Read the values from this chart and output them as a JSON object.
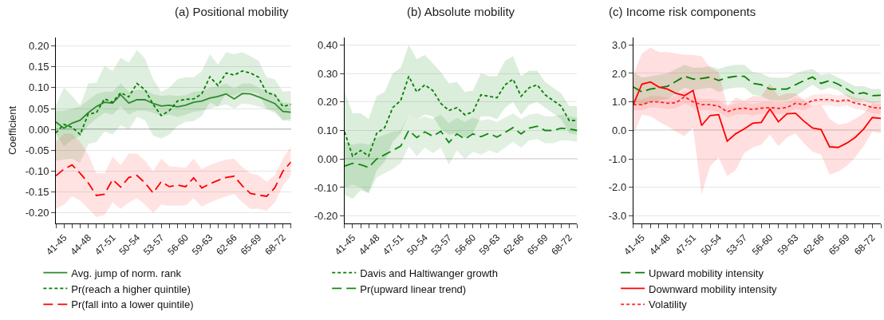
{
  "chart_data": [
    {
      "type": "line",
      "title": "(a) Positional mobility",
      "ylabel": "Coefficient",
      "categories": [
        null,
        "41-45",
        null,
        null,
        "44-48",
        null,
        null,
        "47-51",
        null,
        null,
        "50-54",
        null,
        null,
        "53-57",
        null,
        null,
        "56-60",
        null,
        null,
        "59-63",
        null,
        null,
        "62-66",
        null,
        null,
        "65-69",
        null,
        null,
        "68-72",
        null
      ],
      "ylim": [
        -0.225,
        0.22
      ],
      "yticks": [
        {
          "value": -0.2,
          "label": "-0.20"
        },
        {
          "value": -0.15,
          "label": "-0.15"
        },
        {
          "value": -0.1,
          "label": "-0.10"
        },
        {
          "value": -0.05,
          "label": "-0.05"
        },
        {
          "value": 0,
          "label": "0.00"
        },
        {
          "value": 0.05,
          "label": "0.05"
        },
        {
          "value": 0.1,
          "label": "0.10"
        },
        {
          "value": 0.15,
          "label": "0.15"
        },
        {
          "value": 0.2,
          "label": "0.20"
        }
      ],
      "grid": "y",
      "legend": "bottom",
      "marker": "none",
      "ref_lines": [
        {
          "axis": "y",
          "value": 0,
          "color": "#808080"
        }
      ],
      "series": [
        {
          "name": "Avg. jump of norm. rank",
          "color": "#2e8b2e",
          "line_style": "solid",
          "values": [
            0.018,
            0.003,
            0.015,
            0.022,
            0.04,
            0.055,
            0.065,
            0.063,
            0.083,
            0.063,
            0.071,
            0.071,
            0.062,
            0.056,
            0.058,
            0.054,
            0.058,
            0.065,
            0.068,
            0.075,
            0.079,
            0.085,
            0.073,
            0.086,
            0.085,
            0.078,
            0.07,
            0.062,
            0.043,
            0.041
          ],
          "upper": [
            0.045,
            0.045,
            0.05,
            0.055,
            0.07,
            0.085,
            0.09,
            0.09,
            0.11,
            0.09,
            0.095,
            0.095,
            0.085,
            0.08,
            0.082,
            0.08,
            0.082,
            0.09,
            0.092,
            0.1,
            0.103,
            0.11,
            0.098,
            0.11,
            0.11,
            0.1,
            0.092,
            0.085,
            0.065,
            0.063
          ],
          "lower": [
            -0.01,
            -0.04,
            -0.025,
            -0.015,
            0.01,
            0.025,
            0.04,
            0.035,
            0.055,
            0.035,
            0.045,
            0.045,
            0.04,
            0.032,
            0.035,
            0.03,
            0.035,
            0.042,
            0.045,
            0.05,
            0.055,
            0.06,
            0.05,
            0.062,
            0.06,
            0.055,
            0.048,
            0.04,
            0.022,
            0.02
          ]
        },
        {
          "name": "Pr(reach a higher quintile)",
          "color": "#008000",
          "line_style": "dotted",
          "values": [
            -0.008,
            0.012,
            0.005,
            -0.012,
            0.037,
            0.04,
            0.073,
            0.065,
            0.088,
            0.078,
            0.11,
            0.095,
            0.06,
            0.033,
            0.045,
            0.068,
            0.072,
            0.073,
            0.085,
            0.126,
            0.105,
            0.135,
            0.13,
            0.14,
            0.135,
            0.125,
            0.088,
            0.083,
            0.055,
            0.06
          ],
          "upper": [
            0.058,
            0.1,
            0.08,
            0.057,
            0.11,
            0.112,
            0.152,
            0.14,
            0.172,
            0.16,
            0.19,
            0.17,
            0.12,
            0.09,
            0.1,
            0.12,
            0.125,
            0.125,
            0.14,
            0.18,
            0.155,
            0.185,
            0.18,
            0.185,
            0.175,
            0.165,
            0.125,
            0.12,
            0.09,
            0.092
          ],
          "lower": [
            -0.075,
            -0.072,
            -0.07,
            -0.08,
            -0.035,
            -0.03,
            -0.005,
            -0.012,
            0.01,
            0.0,
            0.03,
            0.022,
            -0.015,
            -0.022,
            -0.012,
            0.008,
            0.018,
            0.02,
            0.032,
            0.065,
            0.055,
            0.085,
            0.08,
            0.09,
            0.09,
            0.085,
            0.05,
            0.045,
            0.022,
            0.025
          ]
        },
        {
          "name": "Pr(fall into a lower quintile)",
          "color": "#ff0000",
          "line_style": "dashed",
          "values": [
            -0.111,
            -0.095,
            -0.085,
            -0.105,
            -0.128,
            -0.158,
            -0.155,
            -0.12,
            -0.138,
            -0.115,
            -0.11,
            -0.128,
            -0.152,
            -0.125,
            -0.137,
            -0.133,
            -0.137,
            -0.116,
            -0.14,
            -0.13,
            -0.122,
            -0.115,
            -0.112,
            -0.135,
            -0.153,
            -0.157,
            -0.16,
            -0.14,
            -0.1,
            -0.078
          ],
          "upper": [
            -0.03,
            -0.01,
            -0.01,
            -0.03,
            -0.06,
            -0.105,
            -0.105,
            -0.065,
            -0.085,
            -0.058,
            -0.058,
            -0.075,
            -0.1,
            -0.07,
            -0.088,
            -0.09,
            -0.092,
            -0.07,
            -0.095,
            -0.085,
            -0.078,
            -0.072,
            -0.07,
            -0.09,
            -0.105,
            -0.11,
            -0.125,
            -0.11,
            -0.07,
            -0.04
          ],
          "lower": [
            -0.19,
            -0.18,
            -0.16,
            -0.17,
            -0.19,
            -0.21,
            -0.205,
            -0.175,
            -0.19,
            -0.175,
            -0.165,
            -0.18,
            -0.2,
            -0.18,
            -0.183,
            -0.182,
            -0.182,
            -0.165,
            -0.185,
            -0.175,
            -0.167,
            -0.16,
            -0.155,
            -0.175,
            -0.19,
            -0.19,
            -0.195,
            -0.175,
            -0.135,
            -0.11
          ]
        }
      ]
    },
    {
      "type": "line",
      "title": "(b) Absolute mobility",
      "categories": [
        null,
        "41-45",
        null,
        null,
        "44-48",
        null,
        null,
        "47-51",
        null,
        null,
        "50-54",
        null,
        null,
        "53-57",
        null,
        null,
        "56-60",
        null,
        null,
        "59-63",
        null,
        null,
        "62-66",
        null,
        null,
        "65-69",
        null,
        null,
        "68-72",
        null
      ],
      "ylim": [
        -0.226,
        0.426
      ],
      "yticks": [
        {
          "value": -0.2,
          "label": "-0.20"
        },
        {
          "value": -0.1,
          "label": "-0.10"
        },
        {
          "value": 0,
          "label": "0.00"
        },
        {
          "value": 0.1,
          "label": "0.10"
        },
        {
          "value": 0.2,
          "label": "0.20"
        },
        {
          "value": 0.3,
          "label": "0.30"
        },
        {
          "value": 0.4,
          "label": "0.40"
        }
      ],
      "grid": "y",
      "legend": "bottom",
      "marker": "none",
      "ref_lines": [
        {
          "axis": "y",
          "value": 0,
          "color": "#808080"
        }
      ],
      "series": [
        {
          "name": "Davis and Haltiwanger growth",
          "color": "#008000",
          "line_style": "dotted",
          "values": [
            0.095,
            0.01,
            0.03,
            0.01,
            0.09,
            0.11,
            0.18,
            0.205,
            0.29,
            0.235,
            0.26,
            0.24,
            0.195,
            0.17,
            0.18,
            0.155,
            0.165,
            0.225,
            0.22,
            0.215,
            0.26,
            0.28,
            0.22,
            0.25,
            0.26,
            0.225,
            0.205,
            0.185,
            0.135,
            0.135
          ],
          "upper": [
            0.235,
            0.16,
            0.16,
            0.14,
            0.22,
            0.235,
            0.3,
            0.32,
            0.4,
            0.35,
            0.365,
            0.335,
            0.305,
            0.265,
            0.27,
            0.235,
            0.24,
            0.3,
            0.29,
            0.29,
            0.345,
            0.36,
            0.29,
            0.31,
            0.31,
            0.27,
            0.25,
            0.23,
            0.185,
            0.185
          ],
          "lower": [
            -0.125,
            -0.14,
            -0.11,
            -0.12,
            -0.04,
            -0.01,
            0.06,
            0.09,
            0.16,
            0.14,
            0.155,
            0.15,
            0.105,
            0.085,
            0.09,
            0.075,
            0.09,
            0.15,
            0.15,
            0.14,
            0.18,
            0.2,
            0.155,
            0.19,
            0.2,
            0.18,
            0.16,
            0.14,
            0.09,
            0.085
          ]
        },
        {
          "name": "Pr(upward linear trend)",
          "color": "#108a10",
          "line_style": "dashed",
          "values": [
            -0.025,
            -0.015,
            -0.02,
            -0.03,
            0.0,
            0.015,
            0.03,
            0.045,
            0.1,
            0.075,
            0.095,
            0.08,
            0.097,
            0.058,
            0.088,
            0.07,
            0.088,
            0.078,
            0.09,
            0.077,
            0.093,
            0.11,
            0.088,
            0.108,
            0.115,
            0.1,
            0.1,
            0.108,
            0.105,
            0.1
          ],
          "upper": [
            0.06,
            0.05,
            0.055,
            0.05,
            0.075,
            0.085,
            0.095,
            0.1,
            0.16,
            0.14,
            0.15,
            0.14,
            0.155,
            0.125,
            0.145,
            0.13,
            0.145,
            0.135,
            0.14,
            0.13,
            0.145,
            0.16,
            0.14,
            0.155,
            0.16,
            0.15,
            0.15,
            0.155,
            0.15,
            0.145
          ],
          "lower": [
            -0.1,
            -0.09,
            -0.1,
            -0.12,
            -0.065,
            -0.05,
            -0.035,
            -0.015,
            0.045,
            0.01,
            0.04,
            0.02,
            0.04,
            -0.02,
            0.03,
            0.0,
            0.025,
            0.015,
            0.03,
            0.02,
            0.04,
            0.06,
            0.04,
            0.065,
            0.07,
            0.055,
            0.055,
            0.065,
            0.065,
            0.06
          ]
        }
      ]
    },
    {
      "type": "line",
      "title": "(c) Income risk components",
      "categories": [
        null,
        "41-45",
        null,
        null,
        "44-48",
        null,
        null,
        "47-51",
        null,
        null,
        "50-54",
        null,
        null,
        "53-57",
        null,
        null,
        "56-60",
        null,
        null,
        "59-63",
        null,
        null,
        "62-66",
        null,
        null,
        "65-69",
        null,
        null,
        "68-72",
        null
      ],
      "ylim": [
        -3.27,
        3.26
      ],
      "yticks": [
        {
          "value": -3,
          "label": "-3.0"
        },
        {
          "value": -2,
          "label": "-2.0"
        },
        {
          "value": -1,
          "label": "-1.0"
        },
        {
          "value": 0,
          "label": "0.0"
        },
        {
          "value": 1,
          "label": "1.0"
        },
        {
          "value": 2,
          "label": "2.0"
        },
        {
          "value": 3,
          "label": "3.0"
        }
      ],
      "grid": "y",
      "legend": "bottom",
      "marker": "none",
      "ref_lines": [
        {
          "axis": "y",
          "value": 0,
          "color": "#808080"
        }
      ],
      "series": [
        {
          "name": "Upward mobility intensity",
          "color": "#008000",
          "line_style": "dashed",
          "values": [
            1.52,
            1.35,
            1.45,
            1.5,
            1.55,
            1.72,
            1.9,
            1.8,
            1.82,
            1.87,
            1.75,
            1.85,
            1.9,
            1.9,
            1.65,
            1.6,
            1.45,
            1.45,
            1.45,
            1.6,
            1.75,
            1.87,
            1.65,
            1.75,
            1.62,
            1.45,
            1.27,
            1.32,
            1.22,
            1.23
          ],
          "upper": [
            2.05,
            1.85,
            1.9,
            1.95,
            2.0,
            2.15,
            2.3,
            2.2,
            2.2,
            2.25,
            2.15,
            2.25,
            2.3,
            2.3,
            2.05,
            2.0,
            1.85,
            1.85,
            1.85,
            2.0,
            2.1,
            2.15,
            1.95,
            2.0,
            1.85,
            1.7,
            1.55,
            1.55,
            1.45,
            1.45
          ],
          "lower": [
            1.0,
            0.85,
            1.0,
            1.05,
            1.1,
            1.3,
            1.5,
            1.4,
            1.45,
            1.5,
            1.35,
            1.45,
            1.5,
            1.5,
            1.25,
            1.2,
            1.05,
            1.05,
            1.05,
            1.2,
            1.4,
            1.6,
            1.4,
            1.5,
            1.4,
            1.2,
            1.0,
            1.05,
            0.95,
            0.98
          ]
        },
        {
          "name": "Downward mobility intensity",
          "color": "#ff0000",
          "line_style": "solid",
          "values": [
            0.9,
            1.62,
            1.7,
            1.52,
            1.45,
            1.3,
            1.22,
            1.4,
            0.17,
            0.52,
            0.55,
            -0.38,
            -0.12,
            0.05,
            0.25,
            0.28,
            0.75,
            0.3,
            0.58,
            0.6,
            0.32,
            0.08,
            0.03,
            -0.58,
            -0.6,
            -0.45,
            -0.25,
            0.05,
            0.45,
            0.42
          ],
          "upper": [
            1.95,
            2.7,
            2.9,
            2.75,
            2.75,
            2.7,
            2.65,
            2.65,
            2.6,
            2.2,
            2.05,
            0.85,
            1.15,
            1.05,
            1.2,
            1.2,
            1.65,
            1.2,
            1.3,
            1.3,
            1.05,
            0.85,
            0.9,
            0.4,
            0.2,
            0.25,
            0.4,
            0.6,
            0.95,
            0.95
          ],
          "lower": [
            -0.15,
            0.55,
            0.5,
            0.3,
            0.15,
            -0.05,
            -0.2,
            0.1,
            -2.25,
            -1.25,
            -0.95,
            -1.6,
            -1.4,
            -0.8,
            -0.6,
            -0.5,
            -0.15,
            -0.55,
            -0.25,
            -0.1,
            -0.45,
            -0.75,
            -0.85,
            -1.55,
            -1.45,
            -1.25,
            -0.95,
            -0.55,
            -0.05,
            -0.1
          ]
        },
        {
          "name": "Volatility",
          "color": "#ff2424",
          "line_style": "dotted",
          "values": [
            0.9,
            0.9,
            1.0,
            1.0,
            0.95,
            0.97,
            1.18,
            1.0,
            0.9,
            0.9,
            0.85,
            0.65,
            0.75,
            0.78,
            0.73,
            0.78,
            0.8,
            0.77,
            0.8,
            0.95,
            0.9,
            1.05,
            1.08,
            1.08,
            1.02,
            1.08,
            0.95,
            0.9,
            0.8,
            0.78
          ],
          "upper": [
            1.1,
            1.1,
            1.2,
            1.2,
            1.15,
            1.2,
            1.4,
            1.2,
            1.1,
            1.1,
            1.05,
            0.85,
            0.95,
            0.98,
            0.93,
            0.98,
            1.0,
            0.97,
            1.0,
            1.15,
            1.1,
            1.25,
            1.28,
            1.28,
            1.22,
            1.28,
            1.15,
            1.1,
            1.0,
            0.98
          ],
          "lower": [
            0.7,
            0.7,
            0.8,
            0.8,
            0.75,
            0.77,
            0.95,
            0.8,
            0.7,
            0.7,
            0.65,
            0.45,
            0.55,
            0.58,
            0.53,
            0.58,
            0.6,
            0.57,
            0.6,
            0.75,
            0.7,
            0.85,
            0.88,
            0.88,
            0.82,
            0.88,
            0.75,
            0.7,
            0.6,
            0.58
          ]
        }
      ]
    }
  ]
}
